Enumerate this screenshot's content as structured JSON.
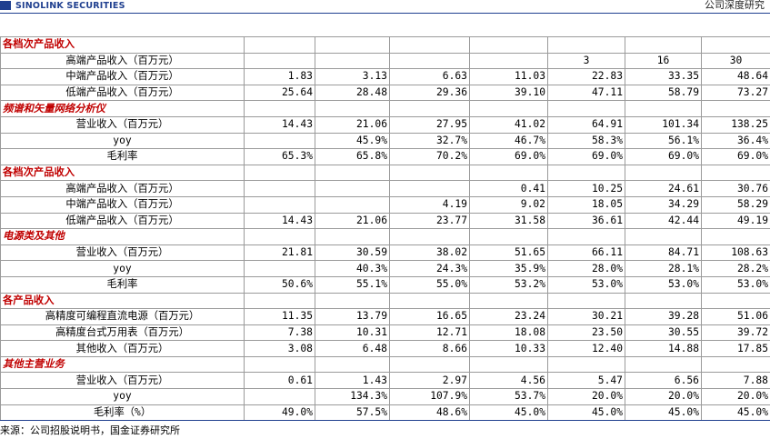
{
  "header": {
    "brand": "SINOLINK SECURITIES",
    "right_text": "公司深度研究"
  },
  "rows": [
    {
      "type": "cat",
      "label": "各档次产品收入",
      "values": [
        "",
        "",
        "",
        "",
        "",
        "",
        ""
      ]
    },
    {
      "type": "row",
      "label": "高端产品收入（百万元）",
      "values": [
        "",
        "",
        "",
        "",
        "3",
        "16",
        "30"
      ],
      "center": true
    },
    {
      "type": "row",
      "label": "中端产品收入（百万元）",
      "values": [
        "1.83",
        "3.13",
        "6.63",
        "11.03",
        "22.83",
        "33.35",
        "48.64"
      ]
    },
    {
      "type": "row",
      "label": "低端产品收入（百万元）",
      "values": [
        "25.64",
        "28.48",
        "29.36",
        "39.10",
        "47.11",
        "58.79",
        "73.27"
      ]
    },
    {
      "type": "sec",
      "label": "频谱和矢量网络分析仪",
      "values": [
        "",
        "",
        "",
        "",
        "",
        "",
        ""
      ]
    },
    {
      "type": "row",
      "label": "营业收入（百万元）",
      "values": [
        "14.43",
        "21.06",
        "27.95",
        "41.02",
        "64.91",
        "101.34",
        "138.25"
      ]
    },
    {
      "type": "row",
      "label": "yoy",
      "values": [
        "",
        "45.9%",
        "32.7%",
        "46.7%",
        "58.3%",
        "56.1%",
        "36.4%"
      ]
    },
    {
      "type": "row",
      "label": "毛利率",
      "values": [
        "65.3%",
        "65.8%",
        "70.2%",
        "69.0%",
        "69.0%",
        "69.0%",
        "69.0%"
      ]
    },
    {
      "type": "cat",
      "label": "各档次产品收入",
      "values": [
        "",
        "",
        "",
        "",
        "",
        "",
        ""
      ]
    },
    {
      "type": "row",
      "label": "高端产品收入（百万元）",
      "values": [
        "",
        "",
        "",
        "0.41",
        "10.25",
        "24.61",
        "30.76"
      ]
    },
    {
      "type": "row",
      "label": "中端产品收入（百万元）",
      "values": [
        "",
        "",
        "4.19",
        "9.02",
        "18.05",
        "34.29",
        "58.29"
      ]
    },
    {
      "type": "row",
      "label": "低端产品收入（百万元）",
      "values": [
        "14.43",
        "21.06",
        "23.77",
        "31.58",
        "36.61",
        "42.44",
        "49.19"
      ]
    },
    {
      "type": "sec",
      "label": "电源类及其他",
      "values": [
        "",
        "",
        "",
        "",
        "",
        "",
        ""
      ]
    },
    {
      "type": "row",
      "label": "营业收入（百万元）",
      "values": [
        "21.81",
        "30.59",
        "38.02",
        "51.65",
        "66.11",
        "84.71",
        "108.63"
      ]
    },
    {
      "type": "row",
      "label": "yoy",
      "values": [
        "",
        "40.3%",
        "24.3%",
        "35.9%",
        "28.0%",
        "28.1%",
        "28.2%"
      ]
    },
    {
      "type": "row",
      "label": "毛利率",
      "values": [
        "50.6%",
        "55.1%",
        "55.0%",
        "53.2%",
        "53.0%",
        "53.0%",
        "53.0%"
      ]
    },
    {
      "type": "cat",
      "label": "各产品收入",
      "values": [
        "",
        "",
        "",
        "",
        "",
        "",
        ""
      ]
    },
    {
      "type": "row",
      "label": "高精度可编程直流电源（百万元）",
      "values": [
        "11.35",
        "13.79",
        "16.65",
        "23.24",
        "30.21",
        "39.28",
        "51.06"
      ]
    },
    {
      "type": "row",
      "label": "高精度台式万用表（百万元）",
      "values": [
        "7.38",
        "10.31",
        "12.71",
        "18.08",
        "23.50",
        "30.55",
        "39.72"
      ]
    },
    {
      "type": "row",
      "label": "其他收入（百万元）",
      "values": [
        "3.08",
        "6.48",
        "8.66",
        "10.33",
        "12.40",
        "14.88",
        "17.85"
      ]
    },
    {
      "type": "sec",
      "label": "其他主营业务",
      "values": [
        "",
        "",
        "",
        "",
        "",
        "",
        ""
      ]
    },
    {
      "type": "row",
      "label": "营业收入（百万元）",
      "values": [
        "0.61",
        "1.43",
        "2.97",
        "4.56",
        "5.47",
        "6.56",
        "7.88"
      ]
    },
    {
      "type": "row",
      "label": "yoy",
      "values": [
        "",
        "134.3%",
        "107.9%",
        "53.7%",
        "20.0%",
        "20.0%",
        "20.0%"
      ]
    },
    {
      "type": "row",
      "label": "毛利率（%）",
      "values": [
        "49.0%",
        "57.5%",
        "48.6%",
        "45.0%",
        "45.0%",
        "45.0%",
        "45.0%"
      ]
    }
  ],
  "footer": {
    "source": "来源：公司招股说明书，国金证券研究所"
  }
}
